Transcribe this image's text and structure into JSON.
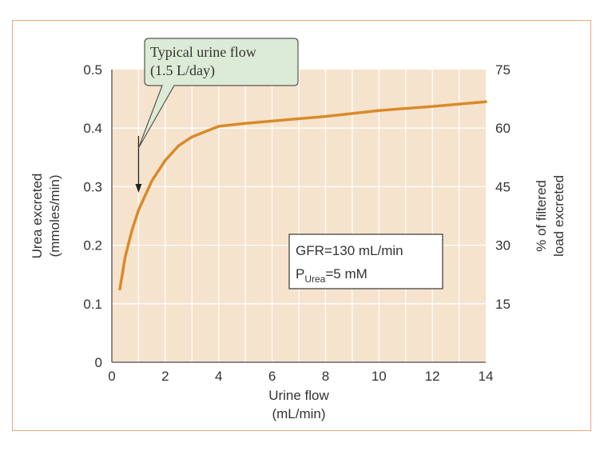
{
  "chart_data": {
    "type": "line",
    "xlabel": [
      "Urine flow",
      "(mL/min)"
    ],
    "ylabel": [
      "Urea excreted",
      "(mmoles/min)"
    ],
    "y2label": [
      "% of filtered",
      "load excreted"
    ],
    "xlim": [
      0,
      14
    ],
    "ylim": [
      0,
      0.5
    ],
    "y2lim": [
      0,
      75
    ],
    "xticks": [
      0,
      2,
      4,
      6,
      8,
      10,
      12,
      14
    ],
    "yticks": [
      "0",
      "0.1",
      "0.2",
      "0.3",
      "0.4",
      "0.5"
    ],
    "y2ticks": [
      "15",
      "30",
      "45",
      "60",
      "75"
    ],
    "grid": true,
    "series": [
      {
        "name": "Urea excretion",
        "color": "#d98a2a",
        "x": [
          0.3,
          0.5,
          0.75,
          1,
          1.5,
          2,
          2.5,
          3,
          4,
          5,
          6,
          8,
          10,
          12,
          14
        ],
        "y": [
          0.125,
          0.18,
          0.225,
          0.26,
          0.31,
          0.345,
          0.37,
          0.385,
          0.403,
          0.408,
          0.412,
          0.42,
          0.43,
          0.437,
          0.445
        ]
      }
    ],
    "callout": {
      "line1": "Typical urine flow",
      "line2": "(1.5 L/day)",
      "x": 1
    },
    "info_box": {
      "line1": "GFR=130 mL/min",
      "line2_p": "P",
      "line2_sub": "Urea",
      "line2_rest": "=5 mM"
    }
  }
}
